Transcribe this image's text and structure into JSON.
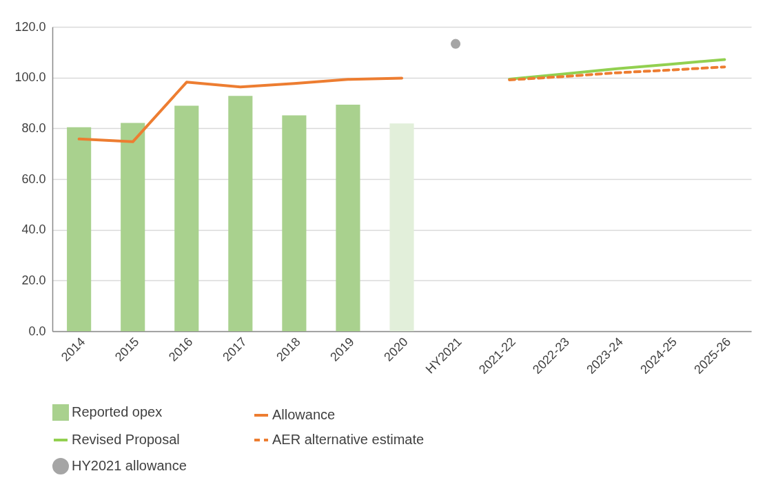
{
  "chart_data": {
    "type": "bar",
    "categories": [
      "2014",
      "2015",
      "2016",
      "2017",
      "2018",
      "2019",
      "2020",
      "HY2021",
      "2021-22",
      "2022-23",
      "2023-24",
      "2024-25",
      "2025-26"
    ],
    "series": [
      {
        "name": "Reported opex",
        "color": "#a9d18e",
        "colors": [
          "#a9d18e",
          "#a9d18e",
          "#a9d18e",
          "#a9d18e",
          "#a9d18e",
          "#a9d18e",
          "#e2efda",
          null,
          null,
          null,
          null,
          null,
          null
        ],
        "values": [
          80.4,
          82.1,
          88.9,
          92.8,
          85.1,
          89.3,
          81.9,
          null,
          null,
          null,
          null,
          null,
          null
        ]
      },
      {
        "name": "Allowance",
        "type": "line",
        "color": "#ed7d31",
        "values": [
          75.8,
          74.7,
          98.2,
          96.3,
          97.7,
          99.3,
          99.8,
          null,
          null,
          null,
          null,
          null,
          null
        ]
      },
      {
        "name": "Revised Proposal",
        "type": "line",
        "color": "#92d050",
        "values": [
          null,
          null,
          null,
          null,
          null,
          null,
          null,
          null,
          99.4,
          101.4,
          103.5,
          105.3,
          107.1
        ]
      },
      {
        "name": "AER alternative estimate",
        "type": "line",
        "color": "#ed7d31",
        "line_style": "dashed",
        "values": [
          null,
          null,
          null,
          null,
          null,
          null,
          null,
          null,
          99.1,
          100.4,
          101.9,
          103.0,
          104.2
        ]
      },
      {
        "name": "HY2021 allowance",
        "type": "scatter",
        "color": "#a5a5a5",
        "marker": "circle",
        "values": [
          null,
          null,
          null,
          null,
          null,
          null,
          null,
          113.3,
          null,
          null,
          null,
          null,
          null
        ]
      }
    ],
    "ylim": [
      0,
      120
    ],
    "yticks": [
      {
        "value": 0,
        "label": "0.0"
      },
      {
        "value": 20,
        "label": "20.0"
      },
      {
        "value": 40,
        "label": "40.0"
      },
      {
        "value": 60,
        "label": "60.0"
      },
      {
        "value": 80,
        "label": "80.0"
      },
      {
        "value": 100,
        "label": "100.0"
      },
      {
        "value": 120,
        "label": "120.0"
      }
    ],
    "grid": "y",
    "legend": "bottom"
  }
}
